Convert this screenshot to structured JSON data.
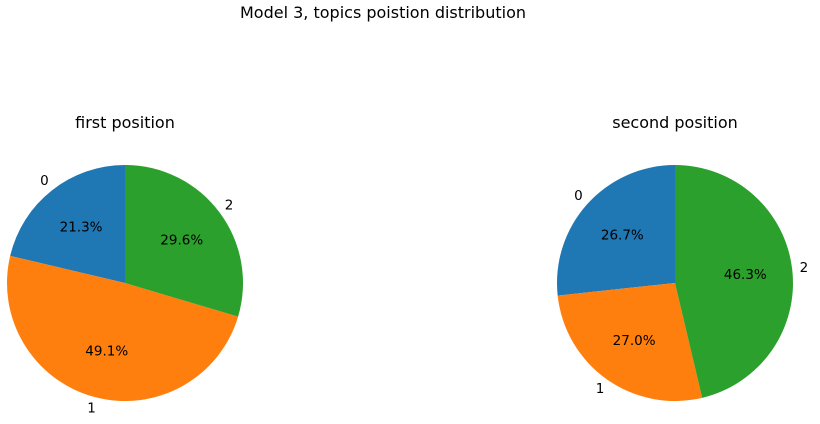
{
  "figure_title": "Model 3, topics poistion distribution",
  "chart_data": [
    {
      "type": "pie",
      "title": "first position",
      "labels": [
        "0",
        "1",
        "2"
      ],
      "values": [
        21.3,
        49.1,
        29.6
      ],
      "value_labels": [
        "21.3%",
        "49.1%",
        "29.6%"
      ],
      "colors": [
        "#1f77b4",
        "#ff7f0e",
        "#2ca02c"
      ],
      "start_angle_deg": 90,
      "direction": "counterclockwise"
    },
    {
      "type": "pie",
      "title": "second position",
      "labels": [
        "0",
        "1",
        "2"
      ],
      "values": [
        26.7,
        27.0,
        46.3
      ],
      "value_labels": [
        "26.7%",
        "27.0%",
        "46.3%"
      ],
      "colors": [
        "#1f77b4",
        "#ff7f0e",
        "#2ca02c"
      ],
      "start_angle_deg": 90,
      "direction": "counterclockwise"
    }
  ]
}
